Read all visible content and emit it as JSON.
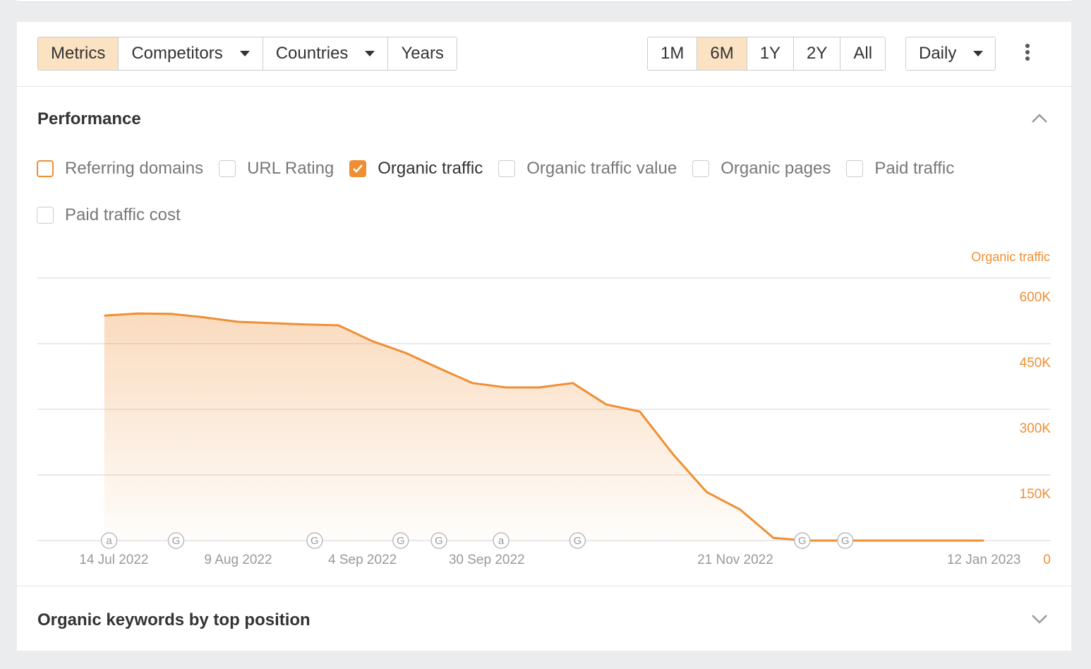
{
  "toolbar": {
    "tabs": [
      {
        "label": "Metrics",
        "active": true,
        "dropdown": false
      },
      {
        "label": "Competitors",
        "active": false,
        "dropdown": true
      },
      {
        "label": "Countries",
        "active": false,
        "dropdown": true
      },
      {
        "label": "Years",
        "active": false,
        "dropdown": false
      }
    ],
    "ranges": [
      {
        "label": "1M",
        "active": false
      },
      {
        "label": "6M",
        "active": true
      },
      {
        "label": "1Y",
        "active": false
      },
      {
        "label": "2Y",
        "active": false
      },
      {
        "label": "All",
        "active": false
      }
    ],
    "interval": "Daily"
  },
  "sections": [
    {
      "title": "Performance",
      "expanded": true
    },
    {
      "title": "Organic keywords by top position",
      "expanded": false
    }
  ],
  "metrics": [
    {
      "label": "Referring domains",
      "checked": false,
      "focused": true
    },
    {
      "label": "URL Rating",
      "checked": false,
      "focused": false
    },
    {
      "label": "Organic traffic",
      "checked": true,
      "focused": false
    },
    {
      "label": "Organic traffic value",
      "checked": false,
      "focused": false
    },
    {
      "label": "Organic pages",
      "checked": false,
      "focused": false
    },
    {
      "label": "Paid traffic",
      "checked": false,
      "focused": false
    },
    {
      "label": "Paid traffic cost",
      "checked": false,
      "focused": false
    }
  ],
  "chart_data": {
    "type": "area",
    "ylabel": "Organic traffic",
    "color": "#ef8f34",
    "x": [
      "2022-07-12",
      "2022-07-19",
      "2022-07-26",
      "2022-08-02",
      "2022-08-09",
      "2022-08-16",
      "2022-08-23",
      "2022-08-30",
      "2022-09-06",
      "2022-09-13",
      "2022-09-20",
      "2022-09-27",
      "2022-10-04",
      "2022-10-11",
      "2022-10-18",
      "2022-10-25",
      "2022-11-01",
      "2022-11-08",
      "2022-11-15",
      "2022-11-22",
      "2022-11-29",
      "2022-12-06",
      "2022-12-13",
      "2022-12-20",
      "2022-12-27",
      "2023-01-03",
      "2023-01-12"
    ],
    "values": [
      514000,
      519000,
      518000,
      510000,
      500000,
      497000,
      494000,
      492000,
      456000,
      429000,
      394000,
      360000,
      350000,
      350000,
      360000,
      311000,
      295000,
      197000,
      111000,
      71000,
      6000,
      0,
      0,
      0,
      0,
      0,
      0
    ],
    "xlim": [
      "2022-06-28",
      "2023-01-26"
    ],
    "xticks": [
      {
        "value": "2022-07-14",
        "label": "14 Jul 2022"
      },
      {
        "value": "2022-08-09",
        "label": "9 Aug 2022"
      },
      {
        "value": "2022-09-04",
        "label": "4 Sep 2022"
      },
      {
        "value": "2022-09-30",
        "label": "30 Sep 2022"
      },
      {
        "value": "2022-11-21",
        "label": "21 Nov 2022"
      },
      {
        "value": "2023-01-12",
        "label": "12 Jan 2023"
      }
    ],
    "ylim": [
      0,
      600000
    ],
    "yticks": [
      0,
      {
        "value": 150000,
        "label": "150K"
      },
      {
        "value": 300000,
        "label": "300K"
      },
      {
        "value": 450000,
        "label": "450K"
      },
      {
        "value": 600000,
        "label": "600K"
      }
    ],
    "grid": true,
    "annotations": [
      {
        "x": "2022-07-13",
        "label": "a"
      },
      {
        "x": "2022-07-27",
        "label": "G"
      },
      {
        "x": "2022-08-25",
        "label": "G"
      },
      {
        "x": "2022-09-12",
        "label": "G"
      },
      {
        "x": "2022-09-20",
        "label": "G"
      },
      {
        "x": "2022-10-03",
        "label": "a"
      },
      {
        "x": "2022-10-19",
        "label": "G"
      },
      {
        "x": "2022-12-05",
        "label": "G"
      },
      {
        "x": "2022-12-14",
        "label": "G"
      }
    ]
  }
}
